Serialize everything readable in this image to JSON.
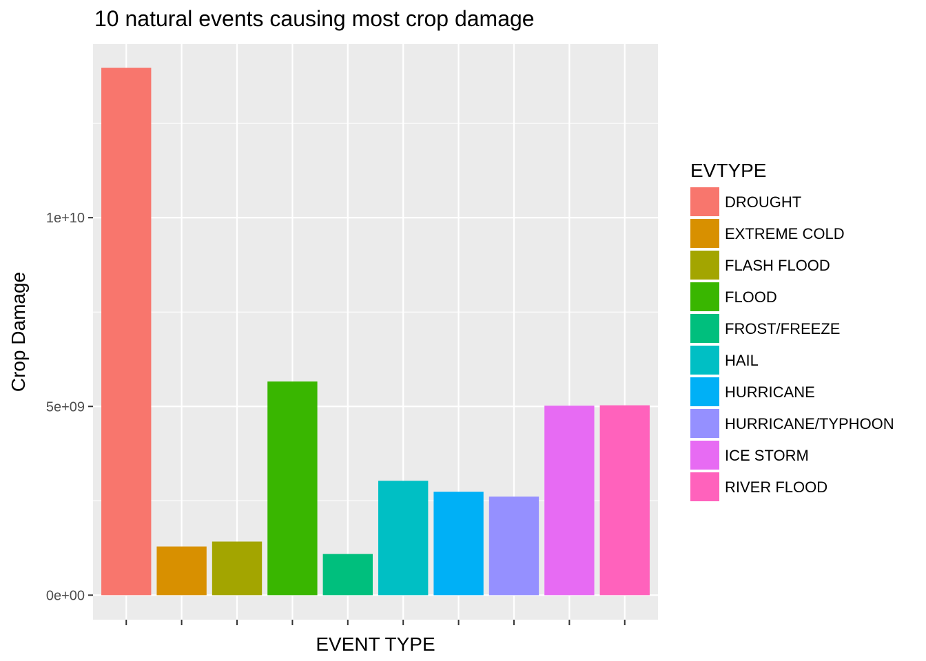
{
  "chart_data": {
    "type": "bar",
    "title": "10 natural events causing most crop damage",
    "xlabel": "EVENT TYPE",
    "ylabel": "Crop Damage",
    "ylim": [
      -650000000,
      14600000000
    ],
    "yticks": [
      0,
      5000000000,
      10000000000
    ],
    "ytick_labels": [
      "0e+00",
      "5e+09",
      "1e+10"
    ],
    "x_tick_labels_shown": false,
    "grid": true,
    "legend": {
      "title": "EVTYPE",
      "position": "right"
    },
    "categories": [
      "DROUGHT",
      "EXTREME COLD",
      "FLASH FLOOD",
      "FLOOD",
      "FROST/FREEZE",
      "HAIL",
      "HURRICANE",
      "HURRICANE/TYPHOON",
      "ICE STORM",
      "RIVER FLOOD"
    ],
    "values": [
      13970000000,
      1290000000,
      1420000000,
      5660000000,
      1090000000,
      3030000000,
      2740000000,
      2610000000,
      5020000000,
      5030000000
    ],
    "colors": [
      "#F8766D",
      "#D89000",
      "#A3A500",
      "#39B600",
      "#00BF7D",
      "#00BFC4",
      "#00B0F6",
      "#9590FF",
      "#E76BF3",
      "#FF62BC"
    ],
    "panel_background": "#EBEBEB",
    "grid_color": "#FFFFFF"
  }
}
